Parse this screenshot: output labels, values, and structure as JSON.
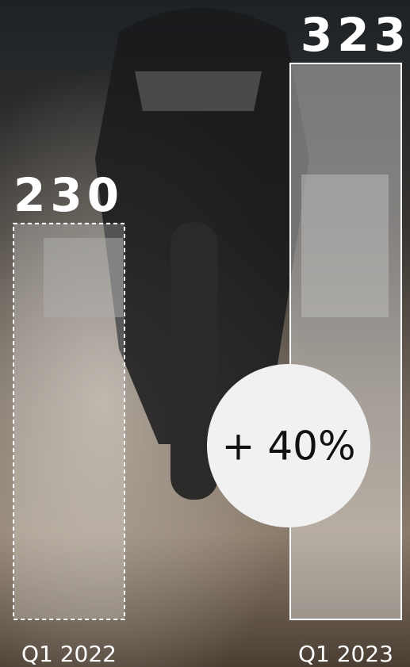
{
  "chart_data": {
    "type": "bar",
    "categories": [
      "Q1 2022",
      "Q1 2023"
    ],
    "values": [
      230,
      323
    ],
    "annotation": "+ 40%",
    "color": "#ffffff"
  }
}
